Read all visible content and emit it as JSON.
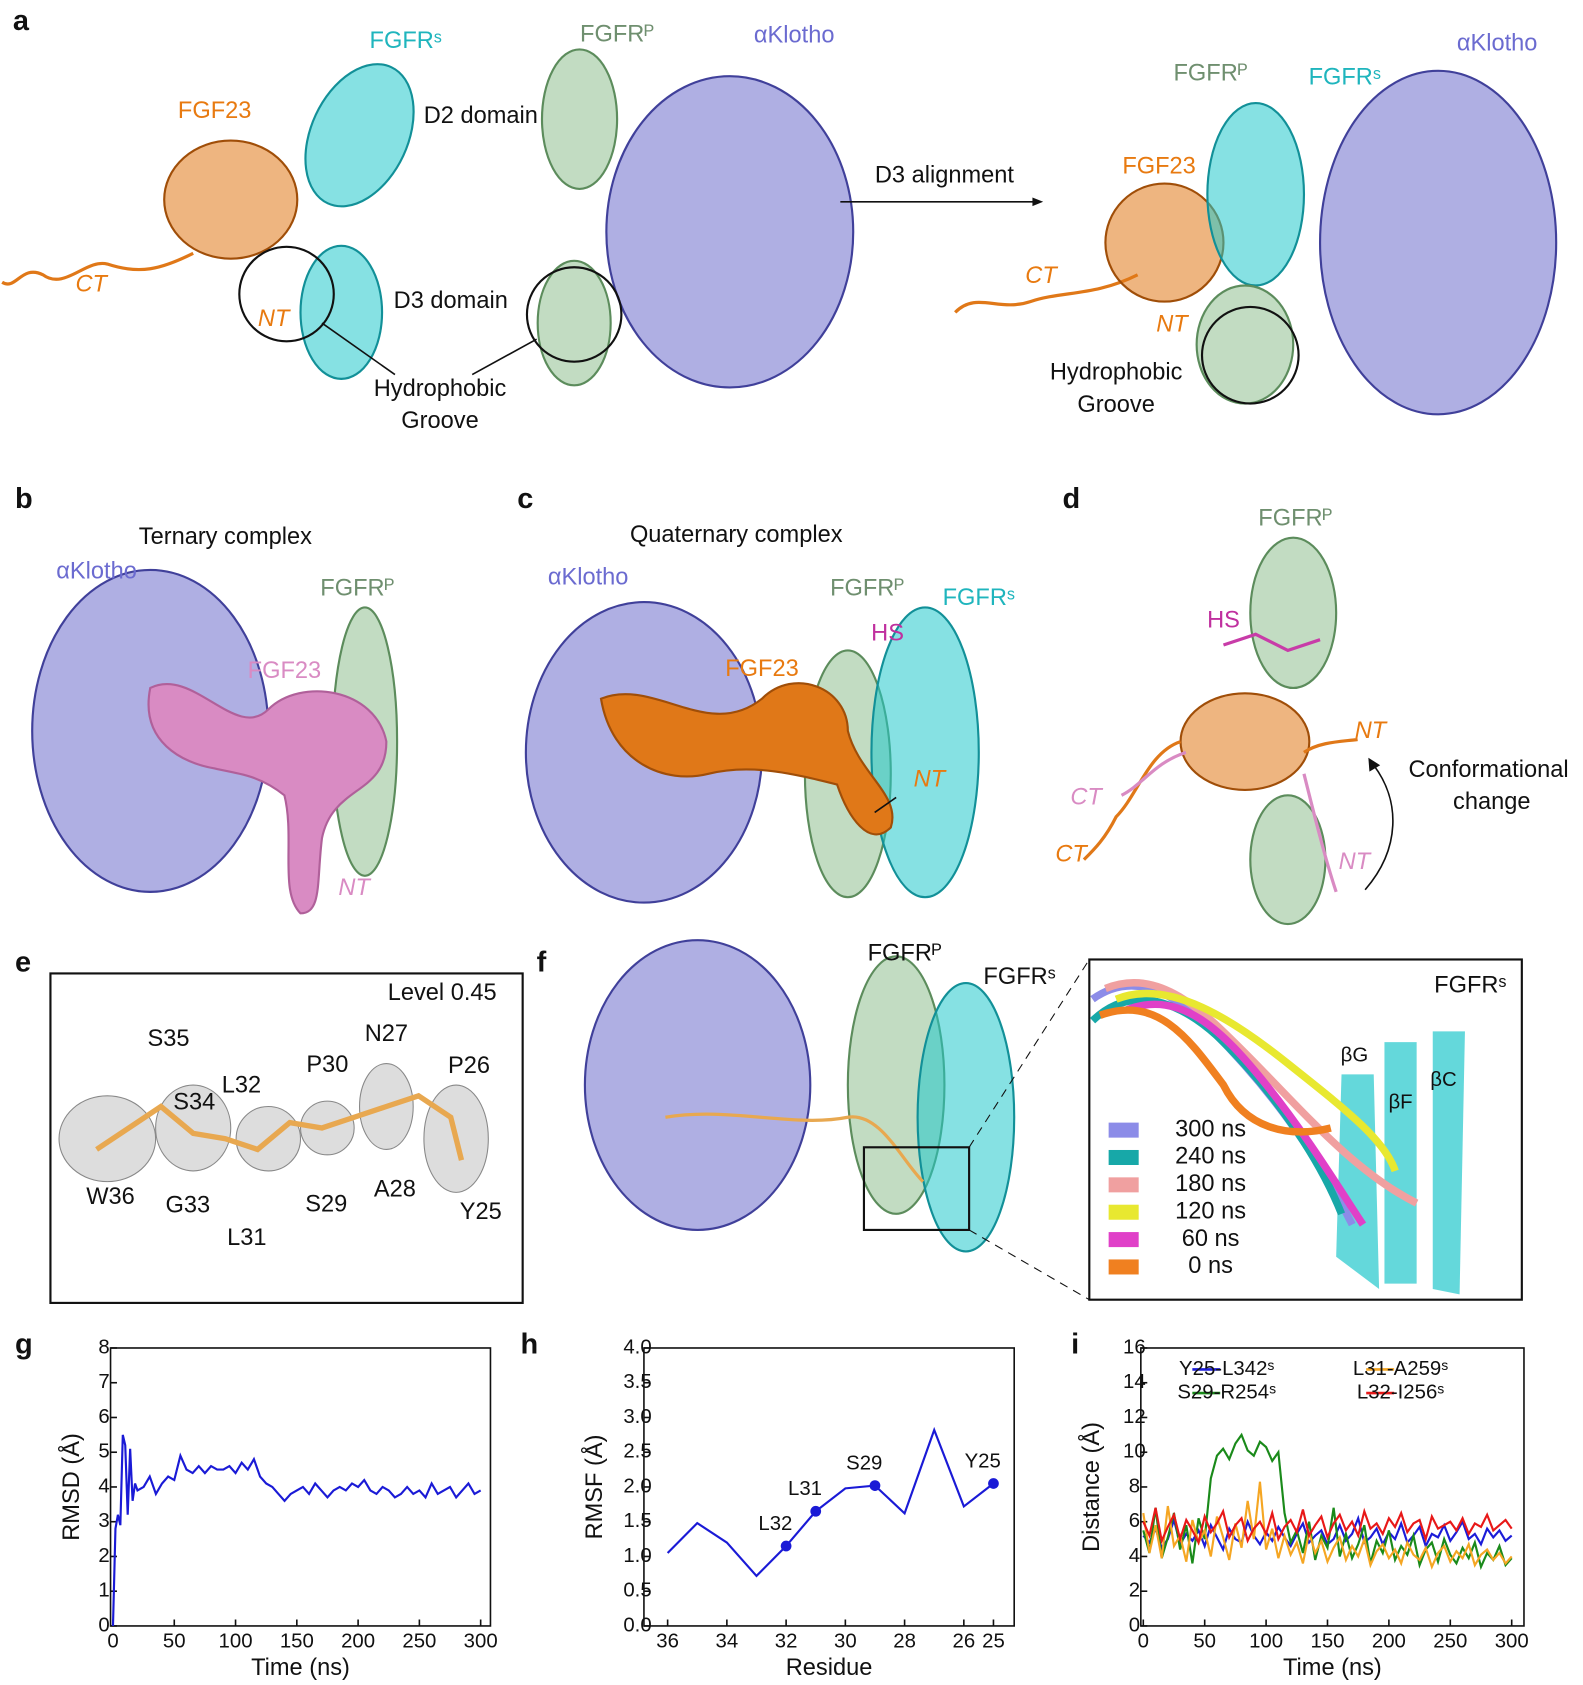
{
  "panel_a": {
    "label": "a",
    "texts": [
      "FGFRˢ",
      "FGFRᴾ",
      "αKlotho",
      "FGF23",
      "D2 domain",
      "CT",
      "NT",
      "D3 domain",
      "Hydrophobic",
      "Groove",
      "D3 alignment",
      "FGFRᴾ",
      "FGFRˢ",
      "αKlotho",
      "FGF23",
      "CT",
      "NT",
      "Hydrophobic",
      "Groove"
    ]
  },
  "panel_b": {
    "label": "b",
    "texts": [
      "Ternary complex",
      "αKlotho",
      "FGFRᴾ",
      "FGF23",
      "NT"
    ]
  },
  "panel_c": {
    "label": "c",
    "texts": [
      "Quaternary complex",
      "αKlotho",
      "FGFRᴾ",
      "FGFRˢ",
      "HS",
      "FGF23",
      "NT"
    ]
  },
  "panel_d": {
    "label": "d",
    "texts": [
      "FGFRᴾ",
      "HS",
      "NT",
      "Conformational",
      "change",
      "CT",
      "CT",
      "NT"
    ]
  },
  "panel_e": {
    "label": "e",
    "texts": [
      "Level 0.45",
      "S35",
      "N27",
      "P30",
      "P26",
      "L32",
      "S34",
      "W36",
      "G33",
      "S29",
      "A28",
      "Y25",
      "L31"
    ]
  },
  "panel_f": {
    "label": "f",
    "texts": [
      "FGFRᴾ",
      "FGFRˢ",
      "FGFRˢ",
      "βG",
      "βF",
      "βC"
    ],
    "legend": [
      "300 ns",
      "240 ns",
      "180 ns",
      "120 ns",
      "60 ns",
      "0 ns"
    ],
    "legend_colors": [
      "#8c8ce8",
      "#17a8a8",
      "#f0a0a0",
      "#e8e830",
      "#e040c8",
      "#f08020"
    ]
  },
  "chart_data": [
    {
      "type": "line",
      "label": "g",
      "xlabel": "Time (ns)",
      "ylabel": "RMSD (Å)",
      "color": "#1a1ad6",
      "x": [
        0,
        2,
        4,
        6,
        8,
        10,
        12,
        14,
        16,
        18,
        20,
        25,
        30,
        35,
        40,
        45,
        50,
        55,
        60,
        65,
        70,
        75,
        80,
        85,
        90,
        95,
        100,
        105,
        110,
        115,
        120,
        125,
        130,
        135,
        140,
        145,
        150,
        155,
        160,
        165,
        170,
        175,
        180,
        185,
        190,
        195,
        200,
        205,
        210,
        215,
        220,
        225,
        230,
        235,
        240,
        245,
        250,
        255,
        260,
        265,
        270,
        275,
        280,
        285,
        290,
        295,
        300
      ],
      "values": [
        0,
        2.8,
        3.2,
        2.9,
        5.5,
        5.2,
        3.2,
        5.1,
        3.6,
        4.1,
        3.9,
        4.0,
        4.3,
        3.8,
        4.1,
        4.3,
        4.2,
        4.9,
        4.5,
        4.4,
        4.6,
        4.4,
        4.6,
        4.5,
        4.5,
        4.6,
        4.4,
        4.7,
        4.5,
        4.8,
        4.3,
        4.1,
        4.0,
        3.8,
        3.6,
        3.8,
        3.9,
        4.0,
        3.8,
        4.1,
        3.9,
        3.7,
        3.9,
        4.0,
        3.9,
        4.1,
        4.0,
        4.2,
        3.9,
        3.8,
        4.0,
        3.9,
        3.7,
        3.8,
        4.0,
        3.8,
        3.9,
        3.7,
        4.1,
        3.8,
        3.9,
        4.0,
        3.7,
        3.9,
        4.1,
        3.8,
        3.9
      ],
      "xlim": [
        -2,
        308
      ],
      "ylim": [
        0,
        8
      ],
      "xticks": [
        0,
        50,
        100,
        150,
        200,
        250,
        300
      ],
      "yticks": [
        0,
        1,
        2,
        3,
        4,
        5,
        6,
        7,
        8
      ]
    },
    {
      "type": "line",
      "label": "h",
      "xlabel": "Residue",
      "ylabel": "RMSF (Å)",
      "color": "#1a1ad6",
      "x": [
        36,
        35,
        34,
        33,
        32,
        31,
        30,
        29,
        28,
        27,
        26,
        25
      ],
      "values": [
        1.05,
        1.48,
        1.2,
        0.72,
        1.15,
        1.65,
        1.98,
        2.02,
        1.62,
        2.82,
        1.72,
        2.05
      ],
      "point_labels": [
        null,
        null,
        null,
        null,
        "L32",
        "L31",
        null,
        "S29",
        null,
        null,
        null,
        "Y25"
      ],
      "xlim": [
        36.8,
        24.3
      ],
      "ylim": [
        0,
        4
      ],
      "xticks": [
        36,
        34,
        32,
        30,
        28,
        26,
        25
      ],
      "yticks": [
        {
          "value": 0,
          "label": "0.0"
        },
        0.5,
        {
          "value": 1,
          "label": "1.0"
        },
        1.5,
        {
          "value": 2,
          "label": "2.0"
        },
        2.5,
        {
          "value": 3,
          "label": "3.0"
        },
        3.5,
        {
          "value": 4,
          "label": "4.0"
        }
      ]
    },
    {
      "type": "line",
      "label": "i",
      "xlabel": "Time (ns)",
      "ylabel": "Distance (Å)",
      "x": [
        0,
        5,
        10,
        15,
        20,
        25,
        30,
        35,
        40,
        45,
        50,
        55,
        60,
        65,
        70,
        75,
        80,
        85,
        90,
        95,
        100,
        105,
        110,
        115,
        120,
        125,
        130,
        135,
        140,
        145,
        150,
        155,
        160,
        165,
        170,
        175,
        180,
        185,
        190,
        195,
        200,
        205,
        210,
        215,
        220,
        225,
        230,
        235,
        240,
        245,
        250,
        255,
        260,
        265,
        270,
        275,
        280,
        285,
        290,
        295,
        300
      ],
      "series": [
        {
          "name": "Y25-L342ˢ",
          "color": "#1c1cd8",
          "values": [
            5.2,
            4.8,
            5.6,
            4.5,
            5.0,
            6.1,
            4.7,
            5.3,
            4.9,
            5.5,
            4.6,
            5.8,
            5.1,
            4.4,
            5.6,
            5.0,
            4.8,
            6.0,
            5.2,
            4.7,
            5.4,
            4.9,
            5.7,
            5.1,
            4.6,
            5.3,
            5.9,
            4.8,
            5.2,
            5.5,
            4.7,
            5.0,
            5.8,
            4.9,
            5.3,
            6.2,
            4.8,
            5.1,
            5.6,
            4.7,
            5.4,
            5.0,
            5.9,
            4.8,
            5.2,
            5.7,
            4.6,
            5.3,
            5.1,
            5.8,
            4.9,
            5.4,
            6.0,
            5.0,
            5.3,
            4.7,
            5.6,
            5.1,
            5.5,
            4.9,
            5.2
          ]
        },
        {
          "name": "S29-R254ˢ",
          "color": "#1a8a1a",
          "values": [
            5.5,
            4.2,
            6.8,
            3.9,
            5.1,
            6.5,
            4.4,
            5.8,
            3.6,
            6.2,
            5.0,
            8.5,
            9.8,
            10.2,
            9.6,
            10.5,
            11.0,
            10.1,
            9.8,
            10.6,
            10.3,
            9.5,
            10.0,
            6.5,
            4.8,
            5.5,
            4.2,
            6.0,
            3.8,
            5.2,
            4.5,
            6.8,
            4.0,
            5.3,
            3.9,
            4.7,
            5.8,
            3.6,
            4.9,
            4.2,
            5.5,
            3.8,
            4.6,
            4.1,
            5.2,
            3.5,
            4.4,
            4.8,
            3.7,
            5.0,
            4.1,
            3.6,
            4.5,
            3.9,
            4.8,
            3.4,
            4.2,
            3.8,
            4.6,
            3.5,
            3.9
          ]
        },
        {
          "name": "L31-A259ˢ",
          "color": "#f5a623",
          "values": [
            6.5,
            4.2,
            5.8,
            3.9,
            6.9,
            4.6,
            5.2,
            3.7,
            6.1,
            4.8,
            5.5,
            4.0,
            6.3,
            5.1,
            3.8,
            5.9,
            4.5,
            7.2,
            5.0,
            8.3,
            4.4,
            5.6,
            3.9,
            5.2,
            4.1,
            4.8,
            3.6,
            5.4,
            4.2,
            4.9,
            3.7,
            4.5,
            5.1,
            3.8,
            4.6,
            4.0,
            5.0,
            3.5,
            4.3,
            4.7,
            3.9,
            4.4,
            3.6,
            4.8,
            4.1,
            3.8,
            4.5,
            3.4,
            4.2,
            4.6,
            3.7,
            4.3,
            3.9,
            4.7,
            3.5,
            4.1,
            4.4,
            3.8,
            4.2,
            3.6,
            4.0
          ]
        },
        {
          "name": "L32-I256ˢ",
          "color": "#e81818",
          "values": [
            6.0,
            5.2,
            6.8,
            4.9,
            5.7,
            6.4,
            5.0,
            6.1,
            5.5,
            4.8,
            6.3,
            5.4,
            5.9,
            6.6,
            5.1,
            5.8,
            6.2,
            4.9,
            5.6,
            6.0,
            5.3,
            6.5,
            5.0,
            5.7,
            6.1,
            5.4,
            6.7,
            5.2,
            5.8,
            6.3,
            5.1,
            5.9,
            6.4,
            5.5,
            6.0,
            5.2,
            6.6,
            5.6,
            5.9,
            5.3,
            6.2,
            5.7,
            6.5,
            5.4,
            5.9,
            6.1,
            5.0,
            6.3,
            5.6,
            5.8,
            6.0,
            5.5,
            6.2,
            5.3,
            5.9,
            5.7,
            6.4,
            5.5,
            5.8,
            6.1,
            5.6
          ]
        }
      ],
      "xlim": [
        -2,
        310
      ],
      "ylim": [
        0,
        16
      ],
      "xticks": [
        0,
        50,
        100,
        150,
        200,
        250,
        300
      ],
      "yticks": [
        0,
        2,
        4,
        6,
        8,
        10,
        12,
        14,
        16
      ]
    }
  ]
}
